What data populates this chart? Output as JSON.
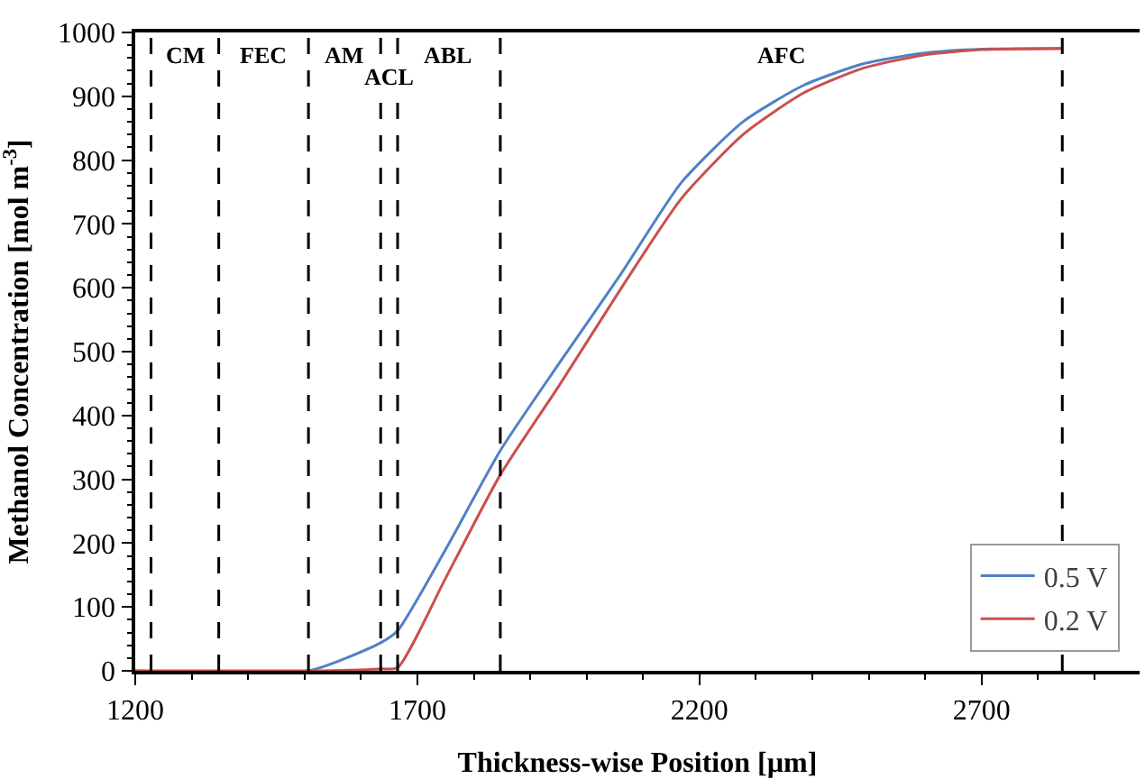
{
  "chart_data": {
    "type": "line",
    "xlabel": "Thickness-wise Position [µm]",
    "ylabel": "Methanol Concentration [mol m$^{-3}$]",
    "xlim": [
      1200,
      2980
    ],
    "xticks": [
      1200,
      1700,
      2200,
      2700
    ],
    "ylim": [
      0,
      1000
    ],
    "yticks": [
      0,
      100,
      200,
      300,
      400,
      500,
      600,
      700,
      800,
      900,
      1000
    ],
    "legend": "bottom right",
    "marker": "none",
    "line_style": "solid",
    "series": [
      {
        "name": "0.5 V",
        "color": "#4f81c7",
        "x": [
          1200,
          1507,
          1635,
          1665,
          1750,
          1847,
          1950,
          2061,
          2168,
          2277,
          2384,
          2490,
          2600,
          2700,
          2843
        ],
        "values": [
          0,
          0,
          44,
          63,
          190,
          345,
          480,
          622,
          765,
          860,
          917,
          951,
          968,
          974,
          975
        ]
      },
      {
        "name": "0.2 V",
        "color": "#c9504d",
        "x": [
          1200,
          1507,
          1635,
          1665,
          1750,
          1847,
          1950,
          2061,
          2168,
          2277,
          2384,
          2490,
          2600,
          2700,
          2843
        ],
        "values": [
          0,
          0,
          3,
          5,
          145,
          307,
          445,
          599,
          740,
          840,
          905,
          944,
          965,
          973,
          975
        ]
      }
    ],
    "ref_lines": [
      {
        "axis": "x",
        "value": 1228,
        "color": "#000000",
        "line_style": "dashed"
      },
      {
        "axis": "x",
        "value": 1348,
        "color": "#000000",
        "line_style": "dashed"
      },
      {
        "axis": "x",
        "value": 1507,
        "color": "#000000",
        "line_style": "dashed"
      },
      {
        "axis": "x",
        "value": 1635,
        "color": "#000000",
        "line_style": "dashed"
      },
      {
        "axis": "x",
        "value": 1665,
        "color": "#000000",
        "line_style": "dashed"
      },
      {
        "axis": "x",
        "value": 1847,
        "color": "#000000",
        "line_style": "dashed"
      },
      {
        "axis": "x",
        "value": 2843,
        "color": "#000000",
        "line_style": "dashed"
      }
    ],
    "annotations": [
      "CM",
      "FEC",
      "AM",
      "ACL",
      "ABL",
      "AFC"
    ]
  }
}
